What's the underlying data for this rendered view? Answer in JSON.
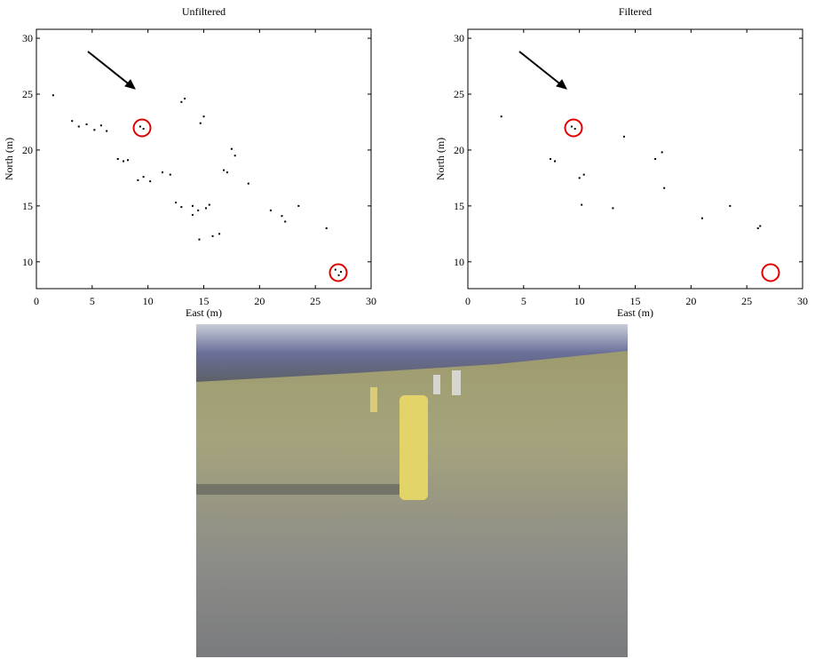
{
  "chart_data": [
    {
      "type": "scatter",
      "title": "Unfiltered",
      "x_label": "East (m)",
      "y_label": "North (m)",
      "color": "#000000",
      "xlim": [
        0,
        30
      ],
      "ylim": [
        7.6,
        30.8
      ],
      "xticks": [
        0,
        5,
        10,
        15,
        20,
        25,
        30
      ],
      "yticks": [
        10,
        15,
        20,
        25,
        30
      ],
      "x": [
        1.5,
        3.2,
        3.8,
        4.5,
        5.2,
        5.8,
        6.3,
        9.3,
        9.6,
        7.3,
        7.8,
        8.2,
        9.1,
        9.6,
        10.2,
        11.3,
        12.0,
        13.0,
        13.3,
        14.7,
        15.0,
        13.0,
        14.0,
        14.5,
        15.2,
        14.0,
        15.5,
        15.8,
        14.6,
        17.5,
        17.8,
        16.8,
        17.1,
        19.0,
        21.0,
        22.0,
        22.3,
        23.5,
        26.0,
        26.8,
        27.1,
        27.3,
        16.4,
        12.5
      ],
      "values": [
        24.9,
        22.6,
        22.1,
        22.3,
        21.8,
        22.2,
        21.7,
        22.1,
        21.9,
        19.2,
        19.0,
        19.1,
        17.3,
        17.6,
        17.2,
        18.0,
        17.8,
        24.3,
        24.6,
        22.4,
        23.0,
        14.9,
        15.0,
        14.6,
        14.8,
        14.2,
        15.1,
        12.3,
        12.0,
        20.1,
        19.5,
        18.2,
        18.0,
        17.0,
        14.6,
        14.1,
        13.6,
        15.0,
        13.0,
        9.3,
        8.8,
        9.1,
        12.5,
        15.3
      ]
    },
    {
      "type": "scatter",
      "title": "Filtered",
      "x_label": "East (m)",
      "y_label": "North (m)",
      "color": "#000000",
      "xlim": [
        0,
        30
      ],
      "ylim": [
        7.6,
        30.8
      ],
      "xticks": [
        0,
        5,
        10,
        15,
        20,
        25,
        30
      ],
      "yticks": [
        10,
        15,
        20,
        25,
        30
      ],
      "x": [
        3.0,
        9.3,
        9.6,
        7.4,
        7.8,
        10.0,
        10.4,
        14.0,
        17.4,
        16.8,
        13.0,
        10.2,
        21.0,
        23.5,
        26.0,
        26.2,
        17.6
      ],
      "values": [
        23.0,
        22.1,
        21.9,
        19.2,
        19.0,
        17.5,
        17.8,
        21.2,
        19.8,
        19.2,
        14.8,
        15.1,
        13.9,
        15.0,
        13.0,
        13.2,
        16.6
      ]
    }
  ]
}
